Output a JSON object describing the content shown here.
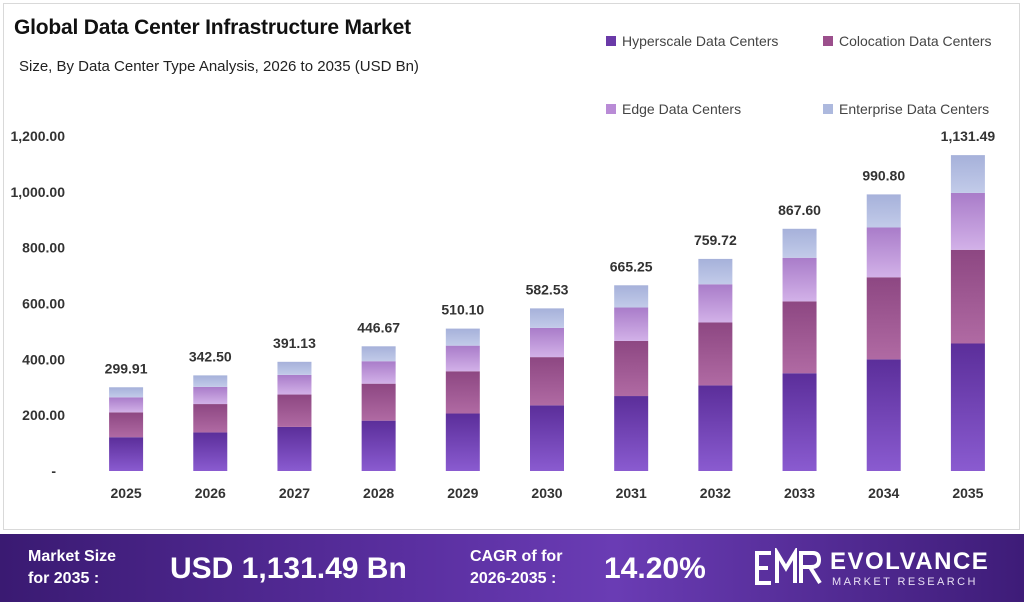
{
  "header": {
    "title": "Global Data Center Infrastructure Market",
    "subtitle": "Size, By Data Center Type Analysis, 2026 to 2035 (USD Bn)"
  },
  "chart_data": {
    "type": "bar",
    "stacked": true,
    "categories": [
      "2025",
      "2026",
      "2027",
      "2028",
      "2029",
      "2030",
      "2031",
      "2032",
      "2033",
      "2034",
      "2035"
    ],
    "series": [
      {
        "name": "Hyperscale Data Centers",
        "color": "#6a3aa8",
        "values": [
          121.0,
          138.2,
          157.9,
          180.3,
          205.9,
          235.1,
          268.5,
          306.6,
          350.2,
          400.0,
          456.7
        ]
      },
      {
        "name": "Colocation Data Centers",
        "color": "#9b4f8c",
        "values": [
          89.0,
          101.6,
          116.0,
          132.5,
          151.3,
          172.8,
          197.3,
          225.4,
          257.4,
          293.9,
          335.6
        ]
      },
      {
        "name": "Edge Data Centers",
        "color": "#b98bd6",
        "values": [
          54.0,
          61.7,
          70.4,
          80.4,
          91.8,
          104.9,
          119.8,
          136.8,
          156.2,
          178.4,
          203.7
        ]
      },
      {
        "name": "Enterprise Data Centers",
        "color": "#adb9de",
        "values": [
          35.91,
          41.0,
          46.83,
          53.47,
          61.1,
          69.73,
          79.65,
          90.92,
          103.8,
          118.5,
          135.49
        ]
      }
    ],
    "totals": [
      "299.91",
      "342.50",
      "391.13",
      "446.67",
      "510.10",
      "582.53",
      "665.25",
      "759.72",
      "867.60",
      "990.80",
      "1,131.49"
    ],
    "y_ticks": [
      "-",
      "200.00",
      "400.00",
      "600.00",
      "800.00",
      "1,000.00",
      "1,200.00"
    ],
    "ylim": [
      0,
      1200
    ],
    "legend_position": "top-right",
    "grid": false
  },
  "footer": {
    "market_size_label_1": "Market Size",
    "market_size_label_2": "for 2035 :",
    "market_size_value": "USD 1,131.49 Bn",
    "cagr_label_1": "CAGR of for",
    "cagr_label_2": "2026-2035 :",
    "cagr_value": "14.20%",
    "brand_name": "EVOLVANCE",
    "brand_sub": "MARKET RESEARCH",
    "brand_icon": "emr-logo-icon"
  }
}
